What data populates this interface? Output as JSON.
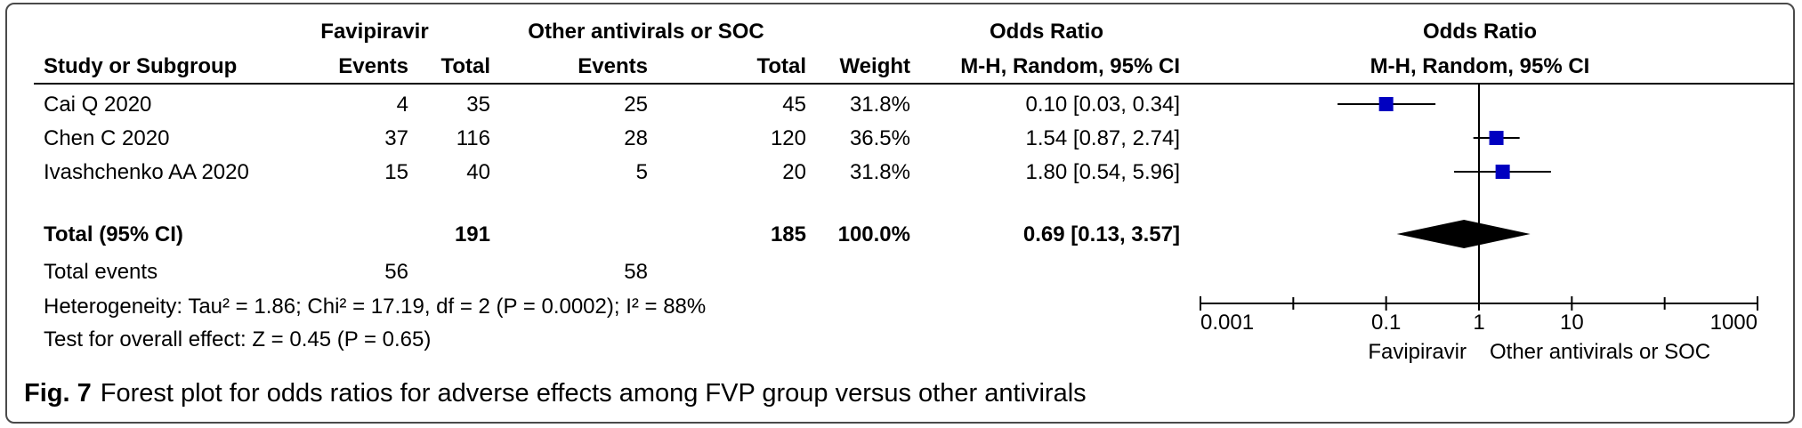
{
  "header": {
    "group1": "Favipiravir",
    "group2": "Other antivirals or SOC",
    "or_title": "Odds Ratio",
    "study_col": "Study or Subgroup",
    "events1": "Events",
    "total1": "Total",
    "events2": "Events",
    "total2": "Total",
    "weight": "Weight",
    "method": "M-H, Random, 95% CI",
    "plot_title": "Odds Ratio",
    "plot_method": "M-H, Random, 95% CI"
  },
  "rows": [
    {
      "study": "Cai Q 2020",
      "e1": "4",
      "n1": "35",
      "e2": "25",
      "n2": "45",
      "weight": "31.8%",
      "ci": "0.10 [0.03, 0.34]"
    },
    {
      "study": "Chen C 2020",
      "e1": "37",
      "n1": "116",
      "e2": "28",
      "n2": "120",
      "weight": "36.5%",
      "ci": "1.54 [0.87, 2.74]"
    },
    {
      "study": "Ivashchenko AA 2020",
      "e1": "15",
      "n1": "40",
      "e2": "5",
      "n2": "20",
      "weight": "31.8%",
      "ci": "1.80 [0.54, 5.96]"
    }
  ],
  "total": {
    "label": "Total (95% CI)",
    "n1": "191",
    "n2": "185",
    "weight": "100.0%",
    "ci": "0.69 [0.13, 3.57]"
  },
  "events": {
    "label": "Total events",
    "e1": "56",
    "e2": "58"
  },
  "heterogeneity": "Heterogeneity: Tau² = 1.86; Chi² = 17.19, df = 2 (P = 0.0002); I² = 88%",
  "overall": "Test for overall effect: Z = 0.45 (P = 0.65)",
  "caption": {
    "label": "Fig. 7",
    "text": "Forest plot for odds ratios for adverse effects among FVP group versus other antivirals"
  },
  "chart_data": {
    "type": "forest",
    "scale": "log",
    "xlim": [
      0.001,
      1000
    ],
    "ticks": [
      0.001,
      0.1,
      1,
      10,
      1000
    ],
    "tick_labels": [
      "0.001",
      "0.1",
      "1",
      "10",
      "1000"
    ],
    "favours_left": "Favipiravir",
    "favours_right": "Other antivirals or SOC",
    "marker_color": "#0000c0",
    "studies": [
      {
        "name": "Cai Q 2020",
        "or": 0.1,
        "lo": 0.03,
        "hi": 0.34,
        "weight": 31.8
      },
      {
        "name": "Chen C 2020",
        "or": 1.54,
        "lo": 0.87,
        "hi": 2.74,
        "weight": 36.5
      },
      {
        "name": "Ivashchenko AA 2020",
        "or": 1.8,
        "lo": 0.54,
        "hi": 5.96,
        "weight": 31.8
      }
    ],
    "pooled": {
      "or": 0.69,
      "lo": 0.13,
      "hi": 3.57
    }
  }
}
